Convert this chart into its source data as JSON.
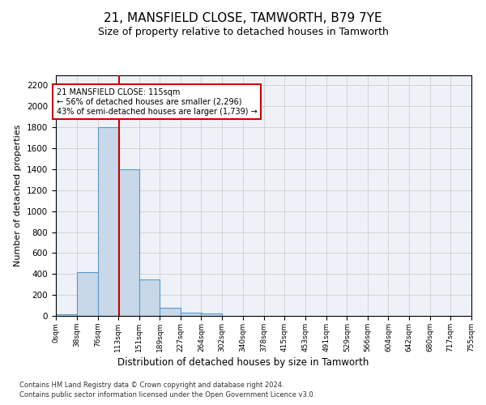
{
  "title": "21, MANSFIELD CLOSE, TAMWORTH, B79 7YE",
  "subtitle": "Size of property relative to detached houses in Tamworth",
  "xlabel": "Distribution of detached houses by size in Tamworth",
  "ylabel": "Number of detached properties",
  "footer_line1": "Contains HM Land Registry data © Crown copyright and database right 2024.",
  "footer_line2": "Contains public sector information licensed under the Open Government Licence v3.0.",
  "bin_edges": [
    0,
    38,
    76,
    113,
    151,
    189,
    227,
    264,
    302,
    340,
    378,
    415,
    453,
    491,
    529,
    566,
    604,
    642,
    680,
    717,
    755
  ],
  "bar_heights": [
    15,
    420,
    1800,
    1400,
    350,
    80,
    30,
    20,
    0,
    0,
    0,
    0,
    0,
    0,
    0,
    0,
    0,
    0,
    0,
    0
  ],
  "bar_color": "#c8d8e8",
  "bar_edge_color": "#5599cc",
  "grid_color": "#cccccc",
  "background_color": "#eef2f8",
  "property_size": 115,
  "vline_color": "#cc0000",
  "annotation_line1": "21 MANSFIELD CLOSE: 115sqm",
  "annotation_line2": "← 56% of detached houses are smaller (2,296)",
  "annotation_line3": "43% of semi-detached houses are larger (1,739) →",
  "annotation_box_color": "#cc0000",
  "ylim": [
    0,
    2300
  ],
  "yticks": [
    0,
    200,
    400,
    600,
    800,
    1000,
    1200,
    1400,
    1600,
    1800,
    2000,
    2200
  ],
  "tick_labels": [
    "0sqm",
    "38sqm",
    "76sqm",
    "113sqm",
    "151sqm",
    "189sqm",
    "227sqm",
    "264sqm",
    "302sqm",
    "340sqm",
    "378sqm",
    "415sqm",
    "453sqm",
    "491sqm",
    "529sqm",
    "566sqm",
    "604sqm",
    "642sqm",
    "680sqm",
    "717sqm",
    "755sqm"
  ]
}
